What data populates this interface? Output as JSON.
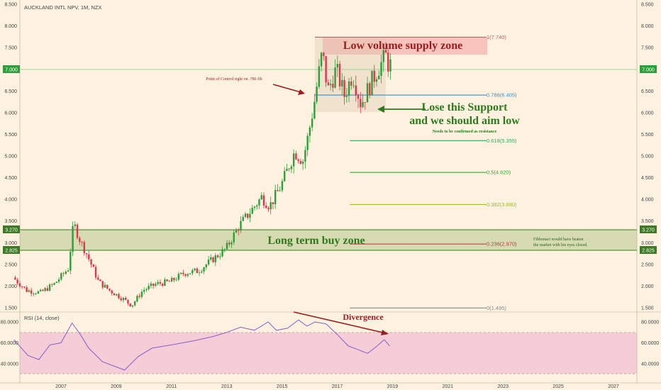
{
  "symbol_title": "AUCKLAND INTL NPV, 1M, NZX",
  "rsi_label": "RSI (14, close)",
  "current_price_label": "7.000",
  "colors": {
    "background": "#fdf2e0",
    "up_candle": "#2e9e3a",
    "down_candle": "#d9394a",
    "rsi_line": "#8a5bc9",
    "rsi_band": "#f3c7d3",
    "buy_zone": "#c9d3a2",
    "supply_zone": "#f4b3b0",
    "annotation_red": "#9b1d20",
    "annotation_green": "#2e7a1e"
  },
  "annotations": {
    "supply_zone": "Low volume supply zone",
    "poc": "Point of Control right on .786 fib",
    "support_line1": "Lose this Support",
    "support_line2": "and we should aim low",
    "confirm": "Needs to be confirmed as resistance",
    "buy_zone": "Long term buy zone",
    "fib_note_line1": "Fibbonaci would have beaten",
    "fib_note_line2": "the market with his eyes closed.",
    "divergence": "Divergence"
  },
  "chart_data": {
    "type": "candlestick",
    "title": "AUCKLAND INTL NPV, 1M, NZX",
    "y_axis_ticks": [
      "1.500",
      "2.000",
      "2.500",
      "3.000",
      "3.500",
      "4.000",
      "4.500",
      "5.000",
      "5.500",
      "6.000",
      "6.500",
      "7.000",
      "7.500",
      "8.000",
      "8.500"
    ],
    "ylim": [
      1.4,
      8.6
    ],
    "x_axis_ticks": [
      "2007",
      "2009",
      "2011",
      "2013",
      "2015",
      "2017",
      "2019",
      "2021",
      "2023",
      "2025",
      "2027"
    ],
    "scale": "linear",
    "price_label_left_right": [
      "3.270",
      "2.825",
      "7.000"
    ],
    "fib_levels": [
      {
        "label": "1(7.740)",
        "value": 7.74,
        "color": "#a66a6a"
      },
      {
        "label": "0.786(6.405)",
        "value": 6.405,
        "color": "#3a8fc9"
      },
      {
        "label": "0.618(5.355)",
        "value": 5.355,
        "color": "#2eab5b"
      },
      {
        "label": "0.5(4.620)",
        "value": 4.62,
        "color": "#36a83a"
      },
      {
        "label": "0.382(3.880)",
        "value": 3.88,
        "color": "#9dbb2c"
      },
      {
        "label": "0.236(2.970)",
        "value": 2.97,
        "color": "#b23a3a"
      },
      {
        "label": "0(1.495)",
        "value": 1.495,
        "color": "#8a8a8a"
      }
    ],
    "zones": [
      {
        "name": "Long term buy zone",
        "from": 2.825,
        "to": 3.27
      },
      {
        "name": "Low volume supply zone",
        "from": 7.4,
        "to": 7.74
      }
    ],
    "price_path": [
      {
        "t": 2005.3,
        "v": 2.2
      },
      {
        "t": 2005.8,
        "v": 1.9
      },
      {
        "t": 2006.3,
        "v": 1.85
      },
      {
        "t": 2006.8,
        "v": 2.05
      },
      {
        "t": 2007.3,
        "v": 2.4
      },
      {
        "t": 2007.5,
        "v": 3.45
      },
      {
        "t": 2007.7,
        "v": 3.1
      },
      {
        "t": 2008.0,
        "v": 2.7
      },
      {
        "t": 2008.4,
        "v": 2.1
      },
      {
        "t": 2008.8,
        "v": 1.9
      },
      {
        "t": 2009.3,
        "v": 1.7
      },
      {
        "t": 2009.6,
        "v": 1.55
      },
      {
        "t": 2010.0,
        "v": 1.9
      },
      {
        "t": 2010.5,
        "v": 2.05
      },
      {
        "t": 2011.0,
        "v": 2.1
      },
      {
        "t": 2011.5,
        "v": 2.3
      },
      {
        "t": 2012.0,
        "v": 2.35
      },
      {
        "t": 2012.5,
        "v": 2.6
      },
      {
        "t": 2013.0,
        "v": 2.85
      },
      {
        "t": 2013.5,
        "v": 3.4
      },
      {
        "t": 2014.0,
        "v": 3.8
      },
      {
        "t": 2014.3,
        "v": 4.05
      },
      {
        "t": 2014.6,
        "v": 3.85
      },
      {
        "t": 2015.0,
        "v": 4.3
      },
      {
        "t": 2015.5,
        "v": 5.1
      },
      {
        "t": 2015.8,
        "v": 4.9
      },
      {
        "t": 2016.0,
        "v": 5.5
      },
      {
        "t": 2016.2,
        "v": 6.2
      },
      {
        "t": 2016.5,
        "v": 7.4
      },
      {
        "t": 2016.7,
        "v": 6.5
      },
      {
        "t": 2017.0,
        "v": 7.0
      },
      {
        "t": 2017.3,
        "v": 6.4
      },
      {
        "t": 2017.6,
        "v": 6.9
      },
      {
        "t": 2017.9,
        "v": 6.2
      },
      {
        "t": 2018.2,
        "v": 6.6
      },
      {
        "t": 2018.5,
        "v": 7.0
      },
      {
        "t": 2018.8,
        "v": 7.3
      },
      {
        "t": 2018.9,
        "v": 7.1
      }
    ],
    "rsi": {
      "name": "RSI (14, close)",
      "y_ticks": [
        "40.0000",
        "60.0000",
        "80.0000"
      ],
      "ylim": [
        28,
        92
      ],
      "band": [
        30,
        70
      ],
      "path": [
        {
          "t": 2005.3,
          "v": 63
        },
        {
          "t": 2005.8,
          "v": 48
        },
        {
          "t": 2006.2,
          "v": 44
        },
        {
          "t": 2006.6,
          "v": 58
        },
        {
          "t": 2007.0,
          "v": 60
        },
        {
          "t": 2007.4,
          "v": 79
        },
        {
          "t": 2007.7,
          "v": 68
        },
        {
          "t": 2008.0,
          "v": 55
        },
        {
          "t": 2008.5,
          "v": 42
        },
        {
          "t": 2009.0,
          "v": 37
        },
        {
          "t": 2009.3,
          "v": 34
        },
        {
          "t": 2009.8,
          "v": 47
        },
        {
          "t": 2010.3,
          "v": 55
        },
        {
          "t": 2011.0,
          "v": 58
        },
        {
          "t": 2011.8,
          "v": 62
        },
        {
          "t": 2012.5,
          "v": 66
        },
        {
          "t": 2013.0,
          "v": 70
        },
        {
          "t": 2013.5,
          "v": 75
        },
        {
          "t": 2014.0,
          "v": 72
        },
        {
          "t": 2014.5,
          "v": 80
        },
        {
          "t": 2014.8,
          "v": 72
        },
        {
          "t": 2015.2,
          "v": 74
        },
        {
          "t": 2015.6,
          "v": 82
        },
        {
          "t": 2015.9,
          "v": 76
        },
        {
          "t": 2016.2,
          "v": 80
        },
        {
          "t": 2016.6,
          "v": 78
        },
        {
          "t": 2017.0,
          "v": 68
        },
        {
          "t": 2017.4,
          "v": 57
        },
        {
          "t": 2017.8,
          "v": 53
        },
        {
          "t": 2018.1,
          "v": 50
        },
        {
          "t": 2018.4,
          "v": 56
        },
        {
          "t": 2018.7,
          "v": 63
        },
        {
          "t": 2018.9,
          "v": 57
        }
      ]
    }
  }
}
